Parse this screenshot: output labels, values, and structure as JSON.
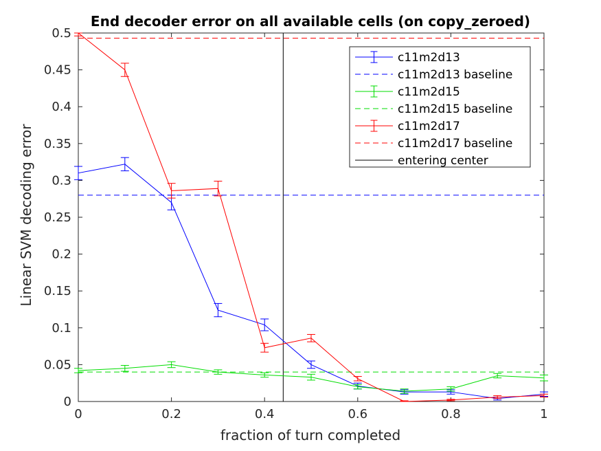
{
  "chart_data": {
    "type": "line",
    "title": "End decoder error on all available cells (on copy_zeroed)",
    "xlabel": "fraction of turn completed",
    "ylabel": "Linear SVM decoding error",
    "xlim": [
      0,
      1
    ],
    "ylim": [
      0,
      0.5
    ],
    "xticks": [
      "0",
      "0.2",
      "0.4",
      "0.6",
      "0.8",
      "1"
    ],
    "yticks": [
      "0",
      "0.05",
      "0.1",
      "0.15",
      "0.2",
      "0.25",
      "0.3",
      "0.35",
      "0.4",
      "0.45",
      "0.5"
    ],
    "legend_position": "top-right",
    "x": [
      0,
      0.1,
      0.2,
      0.3,
      0.4,
      0.5,
      0.6,
      0.7,
      0.8,
      0.9,
      1.0
    ],
    "series": [
      {
        "name": "c11m2d13",
        "color": "#0000ff",
        "values": [
          0.31,
          0.322,
          0.27,
          0.124,
          0.104,
          0.05,
          0.021,
          0.013,
          0.013,
          0.004,
          0.01
        ],
        "err": [
          0.009,
          0.009,
          0.01,
          0.009,
          0.008,
          0.005,
          0.004,
          0.003,
          0.003,
          0.002,
          0.003
        ]
      },
      {
        "name": "c11m2d15",
        "color": "#00dd00",
        "values": [
          0.042,
          0.045,
          0.05,
          0.04,
          0.036,
          0.033,
          0.02,
          0.014,
          0.017,
          0.035,
          0.032
        ],
        "err": [
          0.003,
          0.004,
          0.004,
          0.003,
          0.003,
          0.004,
          0.003,
          0.003,
          0.003,
          0.003,
          0.004
        ]
      },
      {
        "name": "c11m2d17",
        "color": "#ff0000",
        "values": [
          0.5,
          0.45,
          0.286,
          0.289,
          0.073,
          0.086,
          0.031,
          0.0,
          0.002,
          0.006,
          0.008
        ],
        "err": [
          0.004,
          0.009,
          0.01,
          0.01,
          0.006,
          0.005,
          0.003,
          0.001,
          0.001,
          0.002,
          0.002
        ]
      }
    ],
    "baselines": [
      {
        "name": "c11m2d13 baseline",
        "color": "#0000ff",
        "value": 0.28
      },
      {
        "name": "c11m2d15 baseline",
        "color": "#00dd00",
        "value": 0.04
      },
      {
        "name": "c11m2d17 baseline",
        "color": "#ff0000",
        "value": 0.493
      }
    ],
    "vline": {
      "name": "entering center",
      "color": "#000000",
      "x": 0.44
    },
    "legend": [
      "c11m2d13",
      "c11m2d13 baseline",
      "c11m2d15",
      "c11m2d15 baseline",
      "c11m2d17",
      "c11m2d17 baseline",
      "entering center"
    ]
  }
}
